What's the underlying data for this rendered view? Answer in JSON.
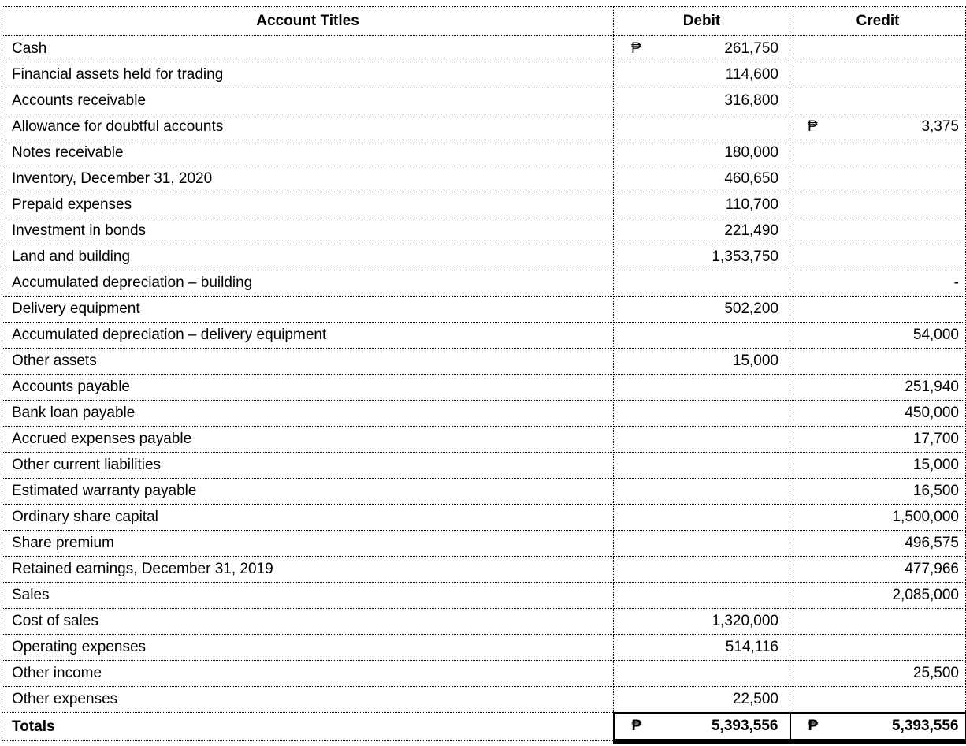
{
  "colors": {
    "text": "#000000",
    "background": "#ffffff",
    "border": "#000000"
  },
  "table": {
    "currency_symbol": "₱",
    "headers": {
      "account": "Account Titles",
      "debit": "Debit",
      "credit": "Credit"
    },
    "rows": [
      {
        "account": "Cash",
        "debit": "261,750",
        "credit": "",
        "debit_p": true,
        "credit_p": false
      },
      {
        "account": "Financial assets held for trading",
        "debit": "114,600",
        "credit": "",
        "debit_p": false,
        "credit_p": false
      },
      {
        "account": "Accounts receivable",
        "debit": "316,800",
        "credit": "",
        "debit_p": false,
        "credit_p": false
      },
      {
        "account": "Allowance for doubtful accounts",
        "debit": "",
        "credit": "3,375",
        "debit_p": false,
        "credit_p": true
      },
      {
        "account": "Notes receivable",
        "debit": "180,000",
        "credit": "",
        "debit_p": false,
        "credit_p": false
      },
      {
        "account": "Inventory, December 31, 2020",
        "debit": "460,650",
        "credit": "",
        "debit_p": false,
        "credit_p": false
      },
      {
        "account": "Prepaid expenses",
        "debit": "110,700",
        "credit": "",
        "debit_p": false,
        "credit_p": false
      },
      {
        "account": "Investment in bonds",
        "debit": "221,490",
        "credit": "",
        "debit_p": false,
        "credit_p": false
      },
      {
        "account": "Land and building",
        "debit": "1,353,750",
        "credit": "",
        "debit_p": false,
        "credit_p": false
      },
      {
        "account": "Accumulated depreciation – building",
        "debit": "",
        "credit": "-",
        "debit_p": false,
        "credit_p": false
      },
      {
        "account": "Delivery equipment",
        "debit": "502,200",
        "credit": "",
        "debit_p": false,
        "credit_p": false
      },
      {
        "account": "Accumulated depreciation – delivery equipment",
        "debit": "",
        "credit": "54,000",
        "debit_p": false,
        "credit_p": false
      },
      {
        "account": "Other assets",
        "debit": "15,000",
        "credit": "",
        "debit_p": false,
        "credit_p": false
      },
      {
        "account": "Accounts payable",
        "debit": "",
        "credit": "251,940",
        "debit_p": false,
        "credit_p": false
      },
      {
        "account": "Bank loan payable",
        "debit": "",
        "credit": "450,000",
        "debit_p": false,
        "credit_p": false
      },
      {
        "account": "Accrued expenses payable",
        "debit": "",
        "credit": "17,700",
        "debit_p": false,
        "credit_p": false
      },
      {
        "account": "Other current liabilities",
        "debit": "",
        "credit": "15,000",
        "debit_p": false,
        "credit_p": false
      },
      {
        "account": "Estimated warranty payable",
        "debit": "",
        "credit": "16,500",
        "debit_p": false,
        "credit_p": false
      },
      {
        "account": "Ordinary share capital",
        "debit": "",
        "credit": "1,500,000",
        "debit_p": false,
        "credit_p": false
      },
      {
        "account": "Share premium",
        "debit": "",
        "credit": "496,575",
        "debit_p": false,
        "credit_p": false
      },
      {
        "account": "Retained earnings, December 31, 2019",
        "debit": "",
        "credit": "477,966",
        "debit_p": false,
        "credit_p": false
      },
      {
        "account": "Sales",
        "debit": "",
        "credit": "2,085,000",
        "debit_p": false,
        "credit_p": false
      },
      {
        "account": "Cost of sales",
        "debit": "1,320,000",
        "credit": "",
        "debit_p": false,
        "credit_p": false
      },
      {
        "account": "Operating expenses",
        "debit": "514,116",
        "credit": "",
        "debit_p": false,
        "credit_p": false
      },
      {
        "account": "Other income",
        "debit": "",
        "credit": "25,500",
        "debit_p": false,
        "credit_p": false
      },
      {
        "account": "Other expenses",
        "debit": "22,500",
        "credit": "",
        "debit_p": false,
        "credit_p": false
      }
    ],
    "totals": {
      "label": "Totals",
      "debit": "5,393,556",
      "credit": "5,393,556",
      "debit_p": true,
      "credit_p": true
    }
  }
}
